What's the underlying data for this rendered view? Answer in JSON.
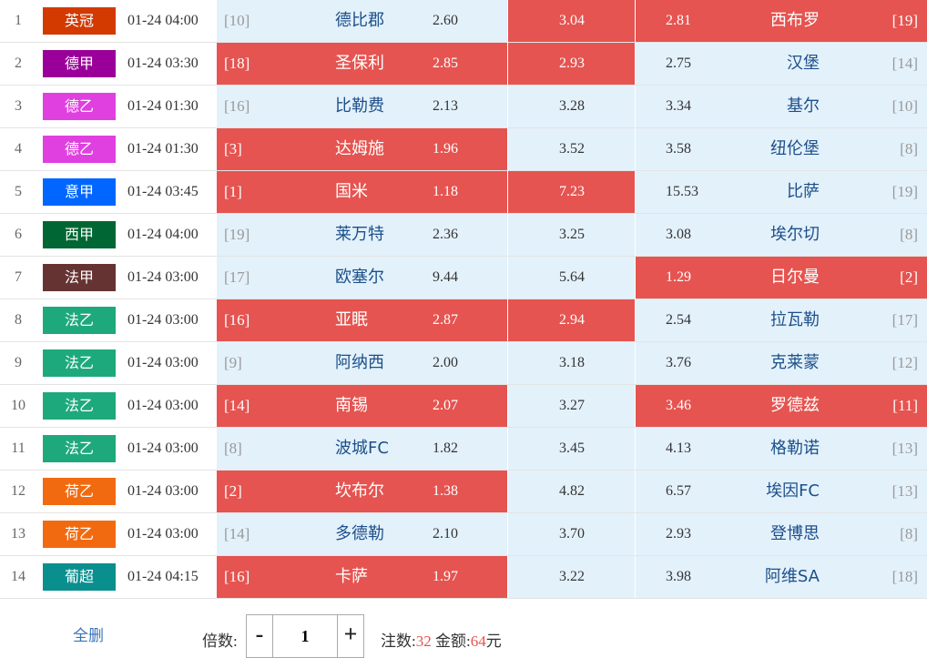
{
  "colors": {
    "selected": "#e55450",
    "unselected": "#e3f1fb",
    "team_text": "#1c4f8a"
  },
  "matches": [
    {
      "idx": "1",
      "league": "英冠",
      "league_color": "#d23a00",
      "time": "01-24 04:00",
      "home_rank": "[10]",
      "home": "德比郡",
      "home_odd": "2.60",
      "home_sel": false,
      "draw_odd": "3.04",
      "draw_sel": true,
      "away_odd": "2.81",
      "away": "西布罗",
      "away_rank": "[19]",
      "away_sel": true
    },
    {
      "idx": "2",
      "league": "德甲",
      "league_color": "#9a0099",
      "time": "01-24 03:30",
      "home_rank": "[18]",
      "home": "圣保利",
      "home_odd": "2.85",
      "home_sel": true,
      "draw_odd": "2.93",
      "draw_sel": true,
      "away_odd": "2.75",
      "away": "汉堡",
      "away_rank": "[14]",
      "away_sel": false
    },
    {
      "idx": "3",
      "league": "德乙",
      "league_color": "#e040e0",
      "time": "01-24 01:30",
      "home_rank": "[16]",
      "home": "比勒费",
      "home_odd": "2.13",
      "home_sel": false,
      "draw_odd": "3.28",
      "draw_sel": false,
      "away_odd": "3.34",
      "away": "基尔",
      "away_rank": "[10]",
      "away_sel": false
    },
    {
      "idx": "4",
      "league": "德乙",
      "league_color": "#e040e0",
      "time": "01-24 01:30",
      "home_rank": "[3]",
      "home": "达姆施",
      "home_odd": "1.96",
      "home_sel": true,
      "draw_odd": "3.52",
      "draw_sel": false,
      "away_odd": "3.58",
      "away": "纽伦堡",
      "away_rank": "[8]",
      "away_sel": false
    },
    {
      "idx": "5",
      "league": "意甲",
      "league_color": "#0066ff",
      "time": "01-24 03:45",
      "home_rank": "[1]",
      "home": "国米",
      "home_odd": "1.18",
      "home_sel": true,
      "draw_odd": "7.23",
      "draw_sel": true,
      "away_odd": "15.53",
      "away": "比萨",
      "away_rank": "[19]",
      "away_sel": false
    },
    {
      "idx": "6",
      "league": "西甲",
      "league_color": "#006633",
      "time": "01-24 04:00",
      "home_rank": "[19]",
      "home": "莱万特",
      "home_odd": "2.36",
      "home_sel": false,
      "draw_odd": "3.25",
      "draw_sel": false,
      "away_odd": "3.08",
      "away": "埃尔切",
      "away_rank": "[8]",
      "away_sel": false
    },
    {
      "idx": "7",
      "league": "法甲",
      "league_color": "#663333",
      "time": "01-24 03:00",
      "home_rank": "[17]",
      "home": "欧塞尔",
      "home_odd": "9.44",
      "home_sel": false,
      "draw_odd": "5.64",
      "draw_sel": false,
      "away_odd": "1.29",
      "away": "日尔曼",
      "away_rank": "[2]",
      "away_sel": true
    },
    {
      "idx": "8",
      "league": "法乙",
      "league_color": "#1ea97c",
      "time": "01-24 03:00",
      "home_rank": "[16]",
      "home": "亚眠",
      "home_odd": "2.87",
      "home_sel": true,
      "draw_odd": "2.94",
      "draw_sel": true,
      "away_odd": "2.54",
      "away": "拉瓦勒",
      "away_rank": "[17]",
      "away_sel": false
    },
    {
      "idx": "9",
      "league": "法乙",
      "league_color": "#1ea97c",
      "time": "01-24 03:00",
      "home_rank": "[9]",
      "home": "阿纳西",
      "home_odd": "2.00",
      "home_sel": false,
      "draw_odd": "3.18",
      "draw_sel": false,
      "away_odd": "3.76",
      "away": "克莱蒙",
      "away_rank": "[12]",
      "away_sel": false
    },
    {
      "idx": "10",
      "league": "法乙",
      "league_color": "#1ea97c",
      "time": "01-24 03:00",
      "home_rank": "[14]",
      "home": "南锡",
      "home_odd": "2.07",
      "home_sel": true,
      "draw_odd": "3.27",
      "draw_sel": false,
      "away_odd": "3.46",
      "away": "罗德兹",
      "away_rank": "[11]",
      "away_sel": true
    },
    {
      "idx": "11",
      "league": "法乙",
      "league_color": "#1ea97c",
      "time": "01-24 03:00",
      "home_rank": "[8]",
      "home": "波城FC",
      "home_odd": "1.82",
      "home_sel": false,
      "draw_odd": "3.45",
      "draw_sel": false,
      "away_odd": "4.13",
      "away": "格勒诺",
      "away_rank": "[13]",
      "away_sel": false
    },
    {
      "idx": "12",
      "league": "荷乙",
      "league_color": "#f26a10",
      "time": "01-24 03:00",
      "home_rank": "[2]",
      "home": "坎布尔",
      "home_odd": "1.38",
      "home_sel": true,
      "draw_odd": "4.82",
      "draw_sel": false,
      "away_odd": "6.57",
      "away": "埃因FC",
      "away_rank": "[13]",
      "away_sel": false
    },
    {
      "idx": "13",
      "league": "荷乙",
      "league_color": "#f26a10",
      "time": "01-24 03:00",
      "home_rank": "[14]",
      "home": "多德勒",
      "home_odd": "2.10",
      "home_sel": false,
      "draw_odd": "3.70",
      "draw_sel": false,
      "away_odd": "2.93",
      "away": "登博思",
      "away_rank": "[8]",
      "away_sel": false
    },
    {
      "idx": "14",
      "league": "葡超",
      "league_color": "#0a8f8f",
      "time": "01-24 04:15",
      "home_rank": "[16]",
      "home": "卡萨",
      "home_odd": "1.97",
      "home_sel": true,
      "draw_odd": "3.22",
      "draw_sel": false,
      "away_odd": "3.98",
      "away": "阿维SA",
      "away_rank": "[18]",
      "away_sel": false
    }
  ],
  "footer": {
    "clear_label": "全删",
    "multiplier_label": "倍数:",
    "minus_label": "-",
    "plus_label": "+",
    "multiplier_value": "1",
    "bets_label": "注数:",
    "bets_value": "32",
    "amount_label": "金额:",
    "amount_value": "64",
    "currency": "元"
  }
}
